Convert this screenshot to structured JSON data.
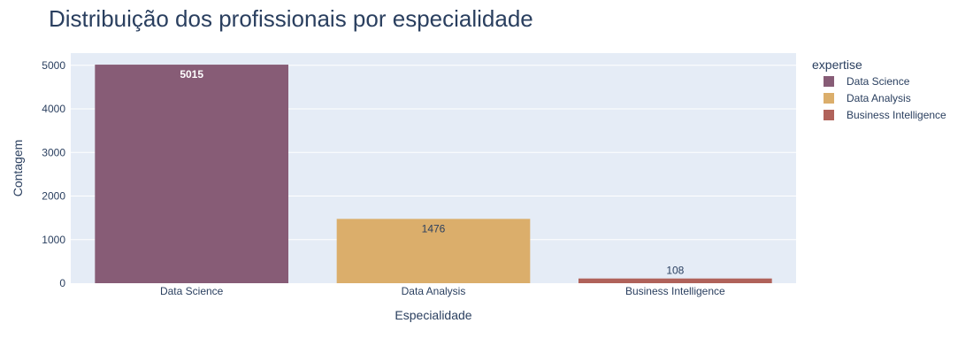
{
  "chart_data": {
    "type": "bar",
    "title": "Distribuição dos profissionais por especialidade",
    "xlabel": "Especialidade",
    "ylabel": "Contagem",
    "categories": [
      "Data Science",
      "Data Analysis",
      "Business Intelligence"
    ],
    "values": [
      5015,
      1476,
      108
    ],
    "data_labels": [
      "5015",
      "1476",
      "108"
    ],
    "colors": [
      "#875c76",
      "#dbae6b",
      "#b0625a"
    ],
    "label_colors": [
      "#ffffff",
      "#2a3f5f",
      "#2a3f5f"
    ],
    "ylim": [
      0,
      5280
    ],
    "yticks": [
      0,
      1000,
      2000,
      3000,
      4000,
      5000
    ],
    "ytick_labels": [
      "0",
      "1000",
      "2000",
      "3000",
      "4000",
      "5000"
    ],
    "grid": true,
    "plot_background": "#e5ecf6",
    "legend": {
      "title": "expertise",
      "position": "top-right",
      "entries": [
        "Data Science",
        "Data Analysis",
        "Business Intelligence"
      ]
    }
  }
}
